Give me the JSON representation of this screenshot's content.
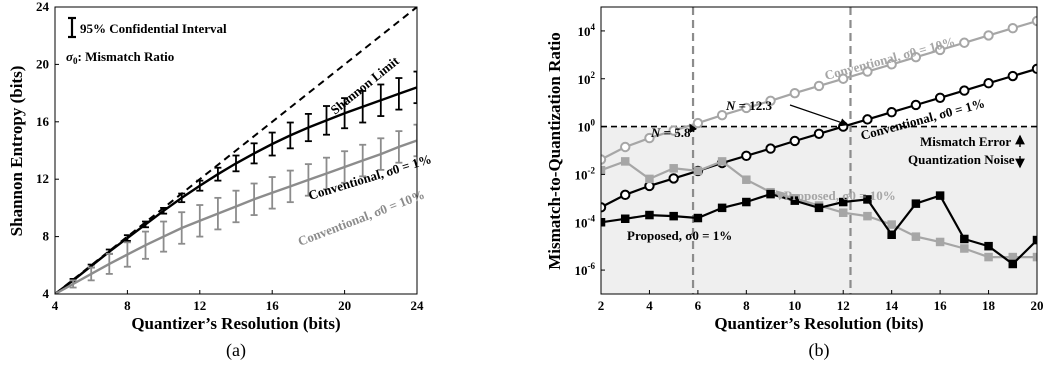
{
  "chart_data": [
    {
      "type": "line",
      "panel_label": "(a)",
      "xlabel": "Quantizer’s Resolution (bits)",
      "ylabel": "Shannon Entropy (bits)",
      "xlim": [
        4,
        24
      ],
      "ylim": [
        4,
        24
      ],
      "xticks": [
        4,
        8,
        12,
        16,
        20,
        24
      ],
      "yticks": [
        4,
        8,
        12,
        16,
        20,
        24
      ],
      "legend": {
        "errorbar": "95% Confidential Interval",
        "sigma_prefix": "σ",
        "sigma_sub": "0",
        "sigma_text": ": Mismatch Ratio"
      },
      "annotations": {
        "shannon": "Shannon Limit",
        "conv1": "Conventional, σ0 = 1%",
        "conv10": "Conventional, σ0 = 10%"
      },
      "series": [
        {
          "name": "Shannon Limit",
          "style": "dashed",
          "color": "#000000",
          "x": [
            4,
            24
          ],
          "y": [
            4,
            24
          ]
        },
        {
          "name": "Conventional, σ0 = 1%",
          "color": "#000000",
          "x": [
            4,
            5,
            6,
            7,
            8,
            9,
            10,
            11,
            12,
            13,
            14,
            15,
            16,
            17,
            18,
            19,
            20,
            21,
            22,
            23,
            24
          ],
          "y": [
            4.0,
            4.95,
            5.95,
            6.95,
            7.9,
            8.85,
            9.8,
            10.7,
            11.55,
            12.35,
            13.1,
            13.8,
            14.45,
            15.05,
            15.6,
            16.1,
            16.6,
            17.05,
            17.5,
            17.95,
            18.4
          ],
          "err": [
            0,
            0.1,
            0.1,
            0.15,
            0.2,
            0.2,
            0.2,
            0.3,
            0.35,
            0.45,
            0.55,
            0.7,
            0.8,
            0.9,
            0.95,
            1.0,
            1.05,
            1.1,
            1.1,
            1.1,
            1.1
          ]
        },
        {
          "name": "Conventional, σ0 = 10%",
          "color": "#8c8c8c",
          "x": [
            4,
            5,
            6,
            7,
            8,
            9,
            10,
            11,
            12,
            13,
            14,
            15,
            16,
            17,
            18,
            19,
            20,
            21,
            22,
            23,
            24
          ],
          "y": [
            4.0,
            4.7,
            5.4,
            6.1,
            6.75,
            7.4,
            8.0,
            8.6,
            9.1,
            9.6,
            10.1,
            10.6,
            11.05,
            11.5,
            11.95,
            12.4,
            12.85,
            13.3,
            13.75,
            14.25,
            14.7
          ],
          "err": [
            0,
            0.25,
            0.45,
            0.7,
            0.85,
            0.95,
            1.05,
            1.1,
            1.1,
            1.1,
            1.1,
            1.1,
            1.1,
            1.1,
            1.1,
            1.1,
            1.1,
            1.1,
            1.1,
            1.1,
            1.1
          ]
        }
      ]
    },
    {
      "type": "line",
      "panel_label": "(b)",
      "xlabel": "Quantizer’s Resolution (bits)",
      "ylabel": "Mismatch-to-Quantization Ratio",
      "yscale": "log",
      "xlim": [
        2,
        20
      ],
      "ylim": [
        1e-07,
        100000.0
      ],
      "xticks": [
        2,
        4,
        6,
        8,
        10,
        12,
        14,
        16,
        18,
        20
      ],
      "yticks": [
        {
          "base": "10",
          "exp": "-6",
          "value": 1e-06
        },
        {
          "base": "10",
          "exp": "-4",
          "value": 0.0001
        },
        {
          "base": "10",
          "exp": "-2",
          "value": 0.01
        },
        {
          "base": "10",
          "exp": "0",
          "value": 1
        },
        {
          "base": "10",
          "exp": "2",
          "value": 100.0
        },
        {
          "base": "10",
          "exp": "4",
          "value": 10000.0
        }
      ],
      "shaded_region": "Quantization Noise",
      "threshold": 1,
      "vlines": [
        5.8,
        12.3
      ],
      "annotations": {
        "n1": "N = 5.8",
        "n2": "N = 12.3",
        "mismatch": "Mismatch Error",
        "quant": "Quantization Noise",
        "conv10": "Conventional, σ0 = 10%",
        "conv1": "Conventional, σ0 = 1%",
        "prop10": "Proposed, σ0 = 10%",
        "prop1": "Proposed, σ0 = 1%"
      },
      "series": [
        {
          "name": "Conventional, σ0 = 10%",
          "color": "#a6a6a6",
          "marker": "circle",
          "x": [
            2,
            3,
            4,
            5,
            6,
            7,
            8,
            9,
            10,
            11,
            12,
            13,
            14,
            15,
            16,
            17,
            18,
            19,
            20
          ],
          "y": [
            0.042,
            0.14,
            0.33,
            0.68,
            1.4,
            3.0,
            6.0,
            12,
            25,
            50,
            100,
            200,
            400,
            800,
            1600,
            3200,
            6500,
            13000,
            26000
          ]
        },
        {
          "name": "Conventional, σ0 = 1%",
          "color": "#000000",
          "marker": "circle",
          "x": [
            2,
            3,
            4,
            5,
            6,
            7,
            8,
            9,
            10,
            11,
            12,
            13,
            14,
            15,
            16,
            17,
            18,
            19,
            20
          ],
          "y": [
            0.00042,
            0.0014,
            0.0033,
            0.0068,
            0.014,
            0.03,
            0.06,
            0.12,
            0.25,
            0.5,
            1.0,
            2.0,
            4.0,
            8.0,
            16,
            32,
            65,
            130,
            260
          ]
        },
        {
          "name": "Proposed, σ0 = 10%",
          "color": "#a6a6a6",
          "marker": "square",
          "x": [
            2,
            3,
            4,
            5,
            6,
            7,
            8,
            9,
            10,
            11,
            12,
            13,
            14,
            15,
            16,
            17,
            18,
            19,
            20
          ],
          "y": [
            0.015,
            0.035,
            0.0065,
            0.018,
            0.014,
            0.035,
            0.006,
            0.0018,
            0.001,
            0.0005,
            0.00025,
            0.00018,
            8e-05,
            2.5e-05,
            1.5e-05,
            8e-06,
            3.5e-06,
            3.5e-06,
            3.5e-06
          ]
        },
        {
          "name": "Proposed, σ0 = 1%",
          "color": "#000000",
          "marker": "square",
          "x": [
            2,
            3,
            4,
            5,
            6,
            7,
            8,
            9,
            10,
            11,
            12,
            13,
            14,
            15,
            16,
            17,
            18,
            19,
            20
          ],
          "y": [
            0.0001,
            0.00014,
            0.0002,
            0.00018,
            0.00015,
            0.0004,
            0.0007,
            0.0015,
            0.0008,
            0.0004,
            0.0007,
            0.0009,
            3e-05,
            0.0006,
            0.0013,
            2e-05,
            1e-05,
            1.8e-06,
            1.8e-05
          ]
        }
      ]
    }
  ]
}
